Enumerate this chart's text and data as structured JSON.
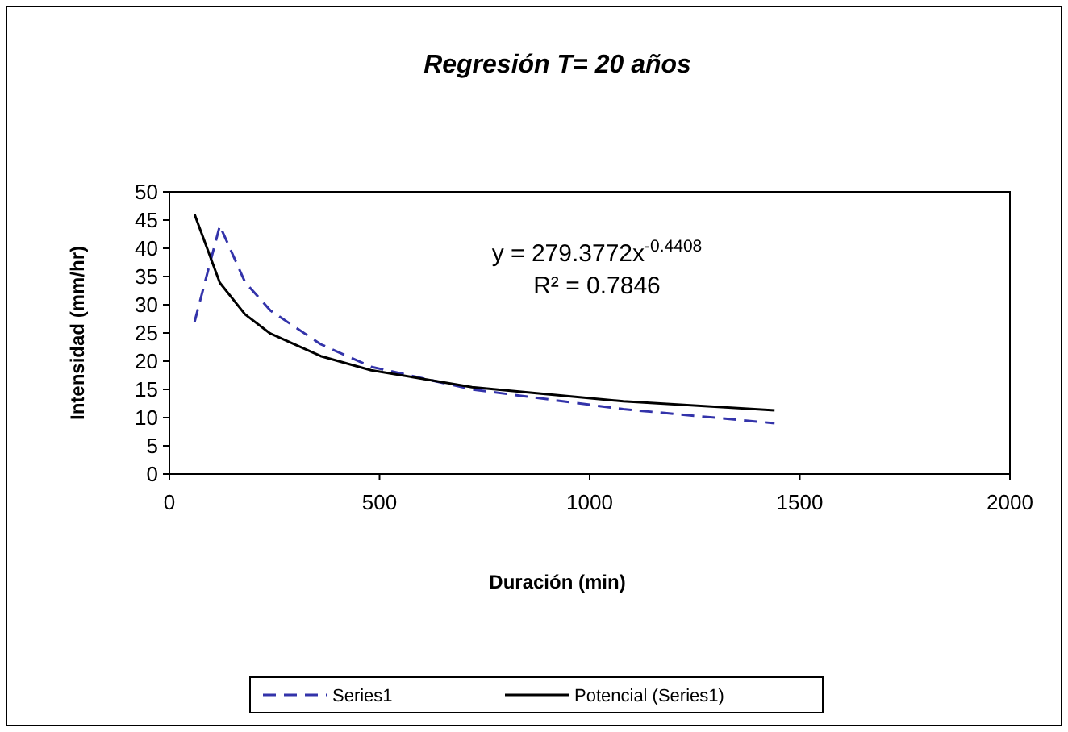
{
  "chart_data": {
    "type": "line",
    "title": "Regresión T= 20 años",
    "xlabel": "Duración (min)",
    "ylabel": "Intensidad (mm/hr)",
    "xlim": [
      0,
      2000
    ],
    "xticks": [
      0,
      500,
      1000,
      1500,
      2000
    ],
    "ylim": [
      0,
      50
    ],
    "yticks": [
      0,
      5,
      10,
      15,
      20,
      25,
      30,
      35,
      40,
      45,
      50
    ],
    "legend": "bottom",
    "grid": false,
    "annotations": [
      "y = 279.3772x$^{-0.4408}$",
      "R² = 0.7846"
    ],
    "series": [
      {
        "name": "Series1",
        "color": "#3333aa",
        "line_style": "dashed",
        "x": [
          60,
          120,
          180,
          240,
          360,
          480,
          720,
          1080,
          1440
        ],
        "values": [
          27,
          44,
          34,
          29,
          23,
          19,
          15,
          11.5,
          9
        ]
      },
      {
        "name": "Potencial (Series1)",
        "color": "#000000",
        "line_style": "solid",
        "x": [
          60,
          120,
          180,
          240,
          360,
          480,
          720,
          1080,
          1440
        ],
        "values": [
          46,
          33.9,
          28.3,
          24.9,
          20.9,
          18.4,
          15.4,
          12.9,
          11.3
        ]
      }
    ]
  }
}
